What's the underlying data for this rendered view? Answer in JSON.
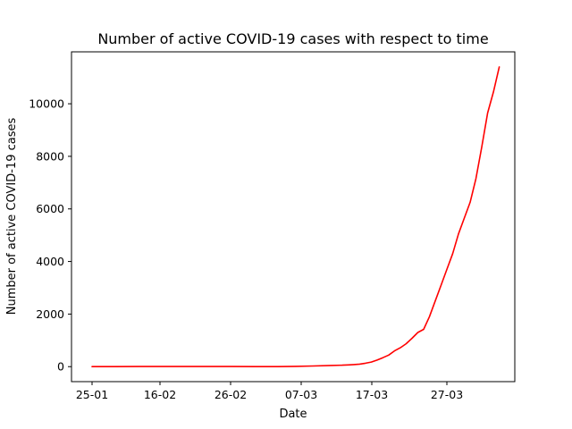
{
  "chart_data": {
    "type": "line",
    "title": "Number of active COVID-19 cases with respect to time",
    "xlabel": "Date",
    "ylabel": "Number of active COVID-19 cases",
    "x_ticks": [
      "25-01",
      "16-02",
      "26-02",
      "07-03",
      "17-03",
      "27-03"
    ],
    "y_ticks": [
      0,
      2000,
      4000,
      6000,
      8000,
      10000
    ],
    "ylim": [
      -570,
      11975
    ],
    "grid": false,
    "colors": {
      "line": "#ff0000"
    },
    "series": [
      {
        "name": "",
        "points": [
          [
            "25-01",
            0
          ],
          [
            "29-01",
            2
          ],
          [
            "02-02",
            5
          ],
          [
            "06-02",
            6
          ],
          [
            "10-02",
            6
          ],
          [
            "14-02",
            5
          ],
          [
            "18-02",
            3
          ],
          [
            "22-02",
            2
          ],
          [
            "26-02",
            1
          ],
          [
            "01-03",
            10
          ],
          [
            "04-03",
            25
          ],
          [
            "07-03",
            45
          ],
          [
            "09-03",
            55
          ],
          [
            "10-03",
            65
          ],
          [
            "11-03",
            80
          ],
          [
            "12-03",
            95
          ],
          [
            "13-03",
            130
          ],
          [
            "14-03",
            175
          ],
          [
            "15-03",
            250
          ],
          [
            "16-03",
            340
          ],
          [
            "17-03",
            440
          ],
          [
            "18-03",
            600
          ],
          [
            "19-03",
            720
          ],
          [
            "20-03",
            870
          ],
          [
            "21-03",
            1080
          ],
          [
            "22-03",
            1300
          ],
          [
            "23-03",
            1420
          ],
          [
            "24-03",
            1900
          ],
          [
            "25-03",
            2500
          ],
          [
            "26-03",
            3100
          ],
          [
            "27-03",
            3700
          ],
          [
            "28-03",
            4300
          ],
          [
            "29-03",
            5050
          ],
          [
            "30-03",
            5650
          ],
          [
            "31-03",
            6250
          ],
          [
            "01-04",
            7150
          ],
          [
            "02-04",
            8350
          ],
          [
            "03-04",
            9650
          ],
          [
            "04-04",
            10450
          ],
          [
            "05-04",
            11400
          ]
        ]
      }
    ]
  }
}
